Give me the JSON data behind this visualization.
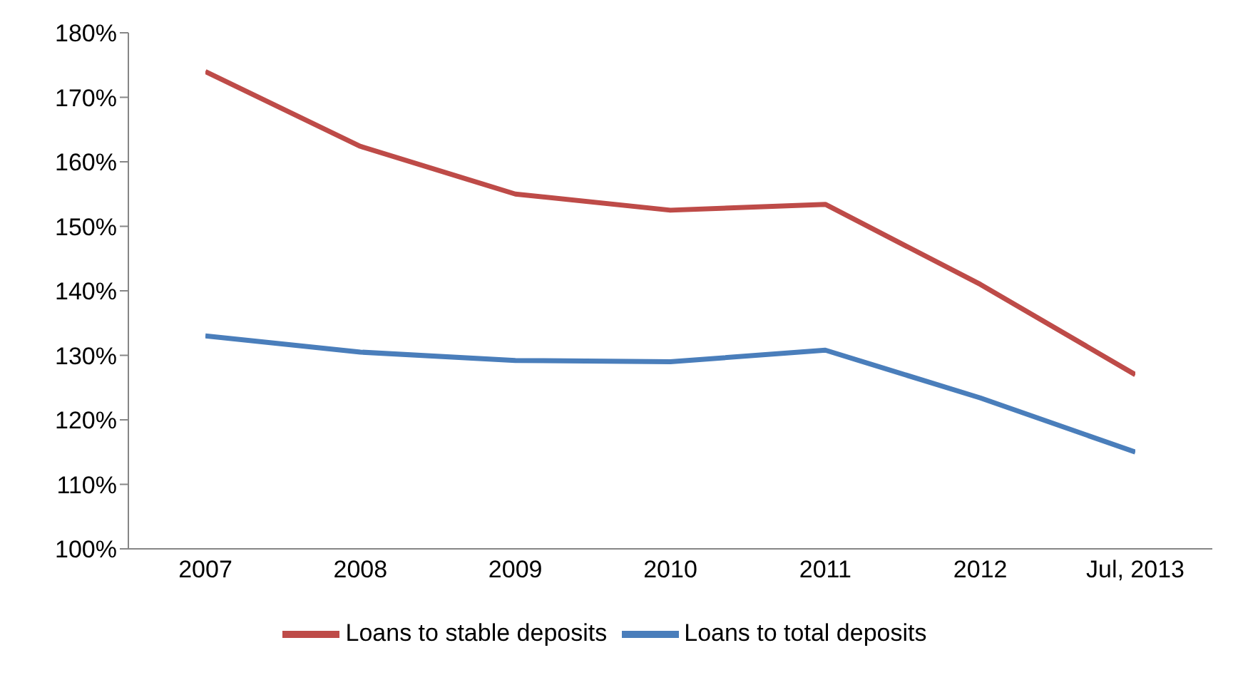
{
  "chart_data": {
    "type": "line",
    "categories": [
      "2007",
      "2008",
      "2009",
      "2010",
      "2011",
      "2012",
      "Jul, 2013"
    ],
    "series": [
      {
        "name": "Loans to total deposits",
        "color": "#4a7ebb",
        "values": [
          133,
          130.5,
          129.2,
          129,
          130.8,
          123.4,
          115
        ]
      },
      {
        "name": "Loans to stable deposits",
        "color": "#be4b48",
        "values": [
          174,
          162.4,
          155,
          152.5,
          153.4,
          141,
          127
        ]
      }
    ],
    "ylim": [
      100,
      180
    ],
    "yticks": [
      {
        "value": 100,
        "label": "100%"
      },
      {
        "value": 110,
        "label": "110%"
      },
      {
        "value": 120,
        "label": "120%"
      },
      {
        "value": 130,
        "label": "130%"
      },
      {
        "value": 140,
        "label": "140%"
      },
      {
        "value": 150,
        "label": "150%"
      },
      {
        "value": 160,
        "label": "160%"
      },
      {
        "value": 170,
        "label": "170%"
      },
      {
        "value": 180,
        "label": "180%"
      }
    ],
    "grid": false,
    "legend": "bottom",
    "marker": "none",
    "line_style": "solid"
  }
}
